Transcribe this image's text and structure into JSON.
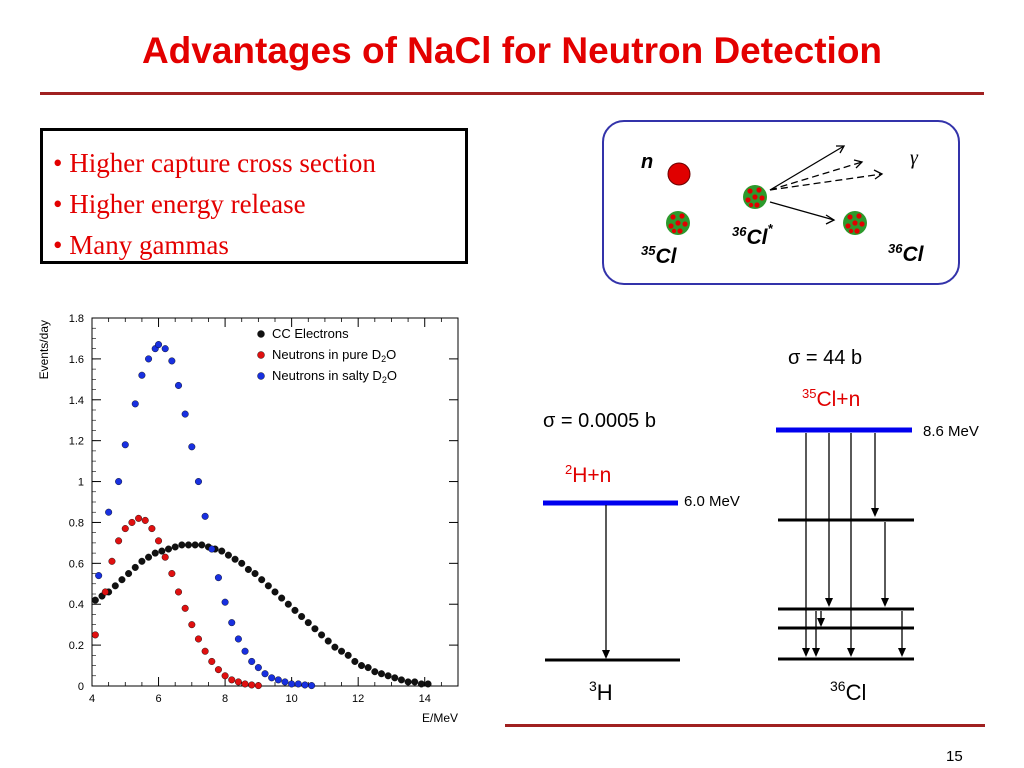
{
  "slide": {
    "title": "Advantages of NaCl for Neutron Detection",
    "page_number": "15",
    "bullets": [
      "Higher capture cross section",
      "Higher energy release",
      "Many gammas"
    ]
  },
  "capture_diagram": {
    "neutron_label": "n",
    "gamma_label": "γ",
    "cl35_mass": "35",
    "cl35_symbol": "Cl",
    "cl36star_mass": "36",
    "cl36star_symbol": "Cl",
    "cl36star_excited": "*",
    "cl36_mass": "36",
    "cl36_symbol": "Cl",
    "colors": {
      "border": "#3333aa",
      "neutron": "#e00000",
      "nucleus_green": "#2c9a2c",
      "nucleus_red": "#e00000"
    }
  },
  "level_diagram": {
    "deuterium": {
      "sigma": "σ = 0.0005 b",
      "reaction_mass": "2",
      "reaction_rest": "H+n",
      "energy": "6.0 MeV",
      "product_mass": "3",
      "product_symbol": "H"
    },
    "chlorine": {
      "sigma": "σ = 44 b",
      "reaction_mass": "35",
      "reaction_rest": "Cl+n",
      "energy": "8.6 MeV",
      "product_mass": "36",
      "product_symbol": "Cl"
    },
    "colors": {
      "capture_level": "#0000ee",
      "reaction_text": "#e00000"
    }
  },
  "chart_data": {
    "type": "scatter",
    "xlabel": "E/MeV",
    "ylabel": "Events/day",
    "xlim": [
      4,
      15
    ],
    "ylim": [
      0,
      1.8
    ],
    "x_ticks": [
      4,
      6,
      8,
      10,
      12,
      14
    ],
    "x_tick_labels": [
      "4",
      "6",
      "8",
      "10",
      "12",
      "14"
    ],
    "y_ticks": [
      0,
      0.2,
      0.4,
      0.6,
      0.8,
      1,
      1.2,
      1.4,
      1.6,
      1.8
    ],
    "y_tick_labels": [
      "0",
      "0.2",
      "0.4",
      "0.6",
      "0.8",
      "1",
      "1.2",
      "1.4",
      "1.6",
      "1.8"
    ],
    "legend_position": "top-right",
    "series": [
      {
        "name": "CC Electrons",
        "legend_main": "CC Electrons",
        "legend_sub": "",
        "legend_tail": "",
        "color": "#111111",
        "x": [
          4.1,
          4.3,
          4.5,
          4.7,
          4.9,
          5.1,
          5.3,
          5.5,
          5.7,
          5.9,
          6.1,
          6.3,
          6.5,
          6.7,
          6.9,
          7.1,
          7.3,
          7.5,
          7.7,
          7.9,
          8.1,
          8.3,
          8.5,
          8.7,
          8.9,
          9.1,
          9.3,
          9.5,
          9.7,
          9.9,
          10.1,
          10.3,
          10.5,
          10.7,
          10.9,
          11.1,
          11.3,
          11.5,
          11.7,
          11.9,
          12.1,
          12.3,
          12.5,
          12.7,
          12.9,
          13.1,
          13.3,
          13.5,
          13.7,
          13.9,
          14.1
        ],
        "y": [
          0.42,
          0.44,
          0.46,
          0.49,
          0.52,
          0.55,
          0.58,
          0.61,
          0.63,
          0.65,
          0.66,
          0.67,
          0.68,
          0.69,
          0.69,
          0.69,
          0.69,
          0.68,
          0.67,
          0.66,
          0.64,
          0.62,
          0.6,
          0.57,
          0.55,
          0.52,
          0.49,
          0.46,
          0.43,
          0.4,
          0.37,
          0.34,
          0.31,
          0.28,
          0.25,
          0.22,
          0.19,
          0.17,
          0.15,
          0.12,
          0.1,
          0.09,
          0.07,
          0.06,
          0.05,
          0.04,
          0.03,
          0.02,
          0.02,
          0.01,
          0.01
        ]
      },
      {
        "name": "Neutrons in pure D2O",
        "legend_main": "Neutrons in pure D",
        "legend_sub": "2",
        "legend_tail": "O",
        "color": "#e01010",
        "x": [
          4.1,
          4.4,
          4.6,
          4.8,
          5.0,
          5.2,
          5.4,
          5.6,
          5.8,
          6.0,
          6.2,
          6.4,
          6.6,
          6.8,
          7.0,
          7.2,
          7.4,
          7.6,
          7.8,
          8.0,
          8.2,
          8.4,
          8.6,
          8.8,
          9.0
        ],
        "y": [
          0.25,
          0.46,
          0.61,
          0.71,
          0.77,
          0.8,
          0.82,
          0.81,
          0.77,
          0.71,
          0.63,
          0.55,
          0.46,
          0.38,
          0.3,
          0.23,
          0.17,
          0.12,
          0.08,
          0.05,
          0.03,
          0.02,
          0.01,
          0.005,
          0.002
        ]
      },
      {
        "name": "Neutrons in salty D2O",
        "legend_main": "Neutrons in salty D",
        "legend_sub": "2",
        "legend_tail": "O",
        "color": "#1830e0",
        "x": [
          4.2,
          4.5,
          4.8,
          5.0,
          5.3,
          5.5,
          5.7,
          5.9,
          6.0,
          6.2,
          6.4,
          6.6,
          6.8,
          7.0,
          7.2,
          7.4,
          7.6,
          7.8,
          8.0,
          8.2,
          8.4,
          8.6,
          8.8,
          9.0,
          9.2,
          9.4,
          9.6,
          9.8,
          10.0,
          10.2,
          10.4,
          10.6
        ],
        "y": [
          0.54,
          0.85,
          1.0,
          1.18,
          1.38,
          1.52,
          1.6,
          1.65,
          1.67,
          1.65,
          1.59,
          1.47,
          1.33,
          1.17,
          1.0,
          0.83,
          0.67,
          0.53,
          0.41,
          0.31,
          0.23,
          0.17,
          0.12,
          0.09,
          0.06,
          0.04,
          0.03,
          0.02,
          0.01,
          0.01,
          0.005,
          0.002
        ]
      }
    ]
  }
}
